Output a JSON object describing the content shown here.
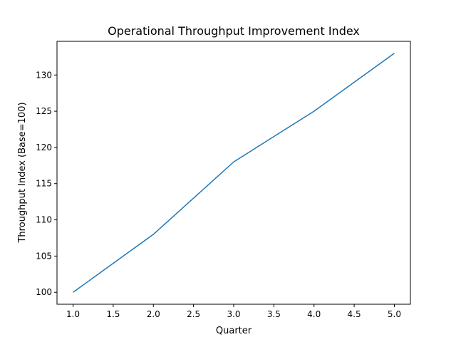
{
  "chart_data": {
    "type": "line",
    "title": "Operational Throughput Improvement Index",
    "xlabel": "Quarter",
    "ylabel": "Throughput Index (Base=100)",
    "x": [
      1,
      2,
      3,
      4,
      5
    ],
    "series": [
      {
        "values": [
          100,
          108,
          118,
          125,
          133
        ],
        "color": "#1f77b4"
      }
    ],
    "xlim": [
      0.8,
      5.2
    ],
    "ylim": [
      98.35,
      134.65
    ],
    "xticks": [
      1.0,
      1.5,
      2.0,
      2.5,
      3.0,
      3.5,
      4.0,
      4.5,
      5.0
    ],
    "xtick_labels": [
      "1.0",
      "1.5",
      "2.0",
      "2.5",
      "3.0",
      "3.5",
      "4.0",
      "4.5",
      "5.0"
    ],
    "yticks": [
      100,
      105,
      110,
      115,
      120,
      125,
      130
    ],
    "ytick_labels": [
      "100",
      "105",
      "110",
      "115",
      "120",
      "125",
      "130"
    ],
    "grid": false,
    "legend": false
  }
}
